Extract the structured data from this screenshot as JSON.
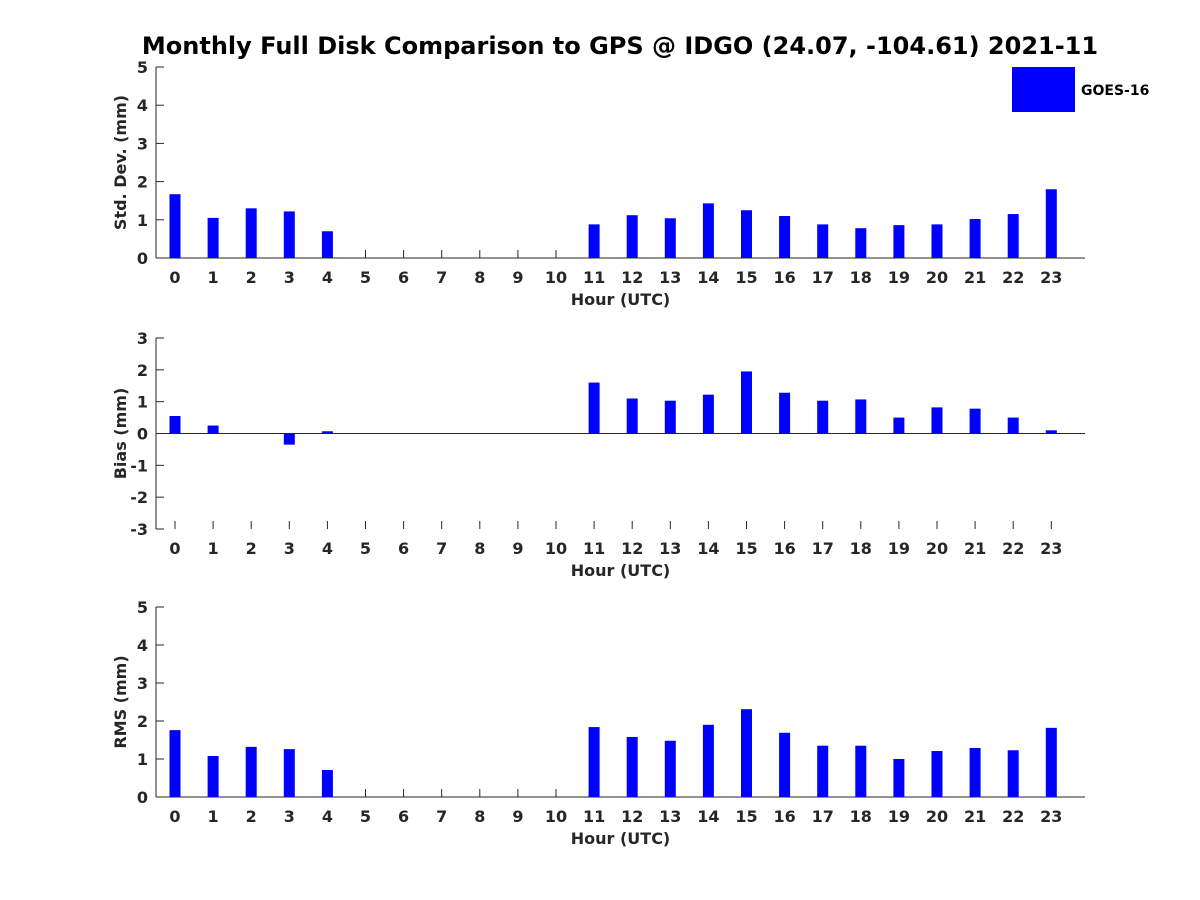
{
  "chart_data": {
    "type": "bar",
    "title": "Monthly Full Disk Comparison to GPS @ IDGO (24.07, -104.61) 2021-11",
    "legend": {
      "label": "GOES-16",
      "color": "#0000ff",
      "placement": "top-right"
    },
    "categories": [
      "0",
      "1",
      "2",
      "3",
      "4",
      "5",
      "6",
      "7",
      "8",
      "9",
      "10",
      "11",
      "12",
      "13",
      "14",
      "15",
      "16",
      "17",
      "18",
      "19",
      "20",
      "21",
      "22",
      "23"
    ],
    "panels": [
      {
        "ylabel": "Std. Dev. (mm)",
        "xlabel": "Hour (UTC)",
        "ylim": [
          0,
          5
        ],
        "yticks": [
          0,
          1,
          2,
          3,
          4,
          5
        ],
        "values": [
          1.67,
          1.05,
          1.3,
          1.22,
          0.7,
          null,
          null,
          null,
          null,
          null,
          null,
          0.88,
          1.12,
          1.04,
          1.43,
          1.25,
          1.1,
          0.88,
          0.78,
          0.86,
          0.88,
          1.02,
          1.15,
          1.8
        ]
      },
      {
        "ylabel": "Bias (mm)",
        "xlabel": "Hour (UTC)",
        "ylim": [
          -3,
          3
        ],
        "yticks": [
          -3,
          -2,
          -1,
          0,
          1,
          2,
          3
        ],
        "values": [
          0.55,
          0.25,
          null,
          -0.35,
          0.07,
          null,
          null,
          null,
          null,
          null,
          null,
          1.6,
          1.1,
          1.03,
          1.22,
          1.95,
          1.28,
          1.03,
          1.07,
          0.5,
          0.82,
          0.78,
          0.5,
          0.1
        ]
      },
      {
        "ylabel": "RMS (mm)",
        "xlabel": "Hour (UTC)",
        "ylim": [
          0,
          5
        ],
        "yticks": [
          0,
          1,
          2,
          3,
          4,
          5
        ],
        "values": [
          1.76,
          1.08,
          1.32,
          1.26,
          0.71,
          null,
          null,
          null,
          null,
          null,
          null,
          1.84,
          1.58,
          1.48,
          1.9,
          2.31,
          1.69,
          1.35,
          1.35,
          1.0,
          1.21,
          1.29,
          1.23,
          1.82
        ]
      }
    ]
  }
}
